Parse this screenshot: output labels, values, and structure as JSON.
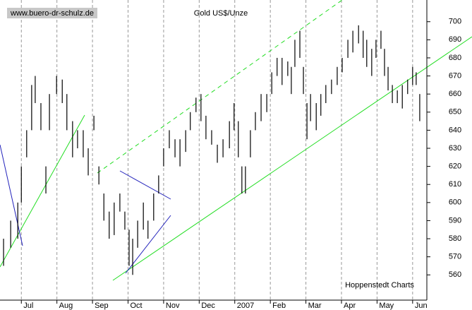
{
  "chart_data": {
    "type": "range-bar",
    "title": "Gold US$/Unze",
    "source_label": "www.buero-dr-schulz.de",
    "credit": "Hoppenstedt Charts",
    "color": "#000000",
    "grid": true,
    "xlim": [
      -0.6,
      11.4
    ],
    "ylim": [
      548,
      712
    ],
    "xticks": [
      {
        "value": 0,
        "label": "Jul"
      },
      {
        "value": 1,
        "label": "Aug"
      },
      {
        "value": 2,
        "label": "Sep"
      },
      {
        "value": 3,
        "label": "Oct"
      },
      {
        "value": 4,
        "label": "Nov"
      },
      {
        "value": 5,
        "label": "Dec"
      },
      {
        "value": 6,
        "label": "2007"
      },
      {
        "value": 7,
        "label": "Feb"
      },
      {
        "value": 8,
        "label": "Mar"
      },
      {
        "value": 9,
        "label": "Apr"
      },
      {
        "value": 10,
        "label": "May"
      },
      {
        "value": 11,
        "label": "Jun"
      }
    ],
    "yticks": [
      560,
      570,
      580,
      590,
      600,
      610,
      620,
      630,
      640,
      650,
      660,
      670,
      680,
      690,
      700
    ],
    "x": [
      -0.5,
      -0.3,
      -0.1,
      0.0,
      0.15,
      0.29,
      0.39,
      0.55,
      0.69,
      0.79,
      0.99,
      1.15,
      1.28,
      1.44,
      1.58,
      1.74,
      1.88,
      2.04,
      2.18,
      2.32,
      2.47,
      2.61,
      2.77,
      2.91,
      3.03,
      3.13,
      3.27,
      3.43,
      3.56,
      3.72,
      3.86,
      4.0,
      4.16,
      4.32,
      4.46,
      4.62,
      4.75,
      4.91,
      5.05,
      5.19,
      5.35,
      5.51,
      5.67,
      5.85,
      5.98,
      6.1,
      6.2,
      6.3,
      6.44,
      6.58,
      6.74,
      6.9,
      7.04,
      7.19,
      7.33,
      7.49,
      7.59,
      7.69,
      7.83,
      7.93,
      8.03,
      8.13,
      8.29,
      8.42,
      8.56,
      8.72,
      8.88,
      9.02,
      9.18,
      9.32,
      9.48,
      9.61,
      9.71,
      9.85,
      9.97,
      10.11,
      10.21,
      10.31,
      10.43,
      10.57,
      10.71,
      10.86,
      11.0,
      11.1,
      11.2
    ],
    "high": [
      580,
      590,
      600,
      620,
      640,
      665,
      670,
      655,
      620,
      660,
      670,
      668,
      660,
      645,
      640,
      640,
      630,
      648,
      620,
      605,
      595,
      600,
      605,
      595,
      585,
      580,
      590,
      600,
      590,
      605,
      615,
      630,
      640,
      635,
      635,
      640,
      650,
      658,
      660,
      648,
      640,
      632,
      635,
      645,
      655,
      645,
      620,
      620,
      640,
      650,
      660,
      660,
      672,
      680,
      680,
      678,
      675,
      690,
      695,
      675,
      655,
      660,
      655,
      660,
      665,
      668,
      675,
      680,
      690,
      695,
      698,
      695,
      690,
      685,
      690,
      695,
      685,
      675,
      665,
      662,
      665,
      668,
      675,
      672,
      660
    ],
    "low": [
      565,
      575,
      580,
      600,
      625,
      640,
      655,
      640,
      605,
      640,
      660,
      655,
      640,
      625,
      630,
      625,
      615,
      640,
      610,
      590,
      580,
      582,
      595,
      585,
      565,
      560,
      575,
      585,
      580,
      590,
      605,
      620,
      630,
      625,
      620,
      628,
      640,
      650,
      645,
      635,
      632,
      622,
      625,
      630,
      640,
      625,
      605,
      605,
      625,
      640,
      645,
      650,
      660,
      670,
      665,
      670,
      660,
      675,
      680,
      660,
      635,
      645,
      640,
      648,
      655,
      660,
      665,
      672,
      680,
      683,
      688,
      680,
      675,
      670,
      680,
      685,
      670,
      662,
      655,
      655,
      652,
      660,
      665,
      665,
      645
    ]
  }
}
